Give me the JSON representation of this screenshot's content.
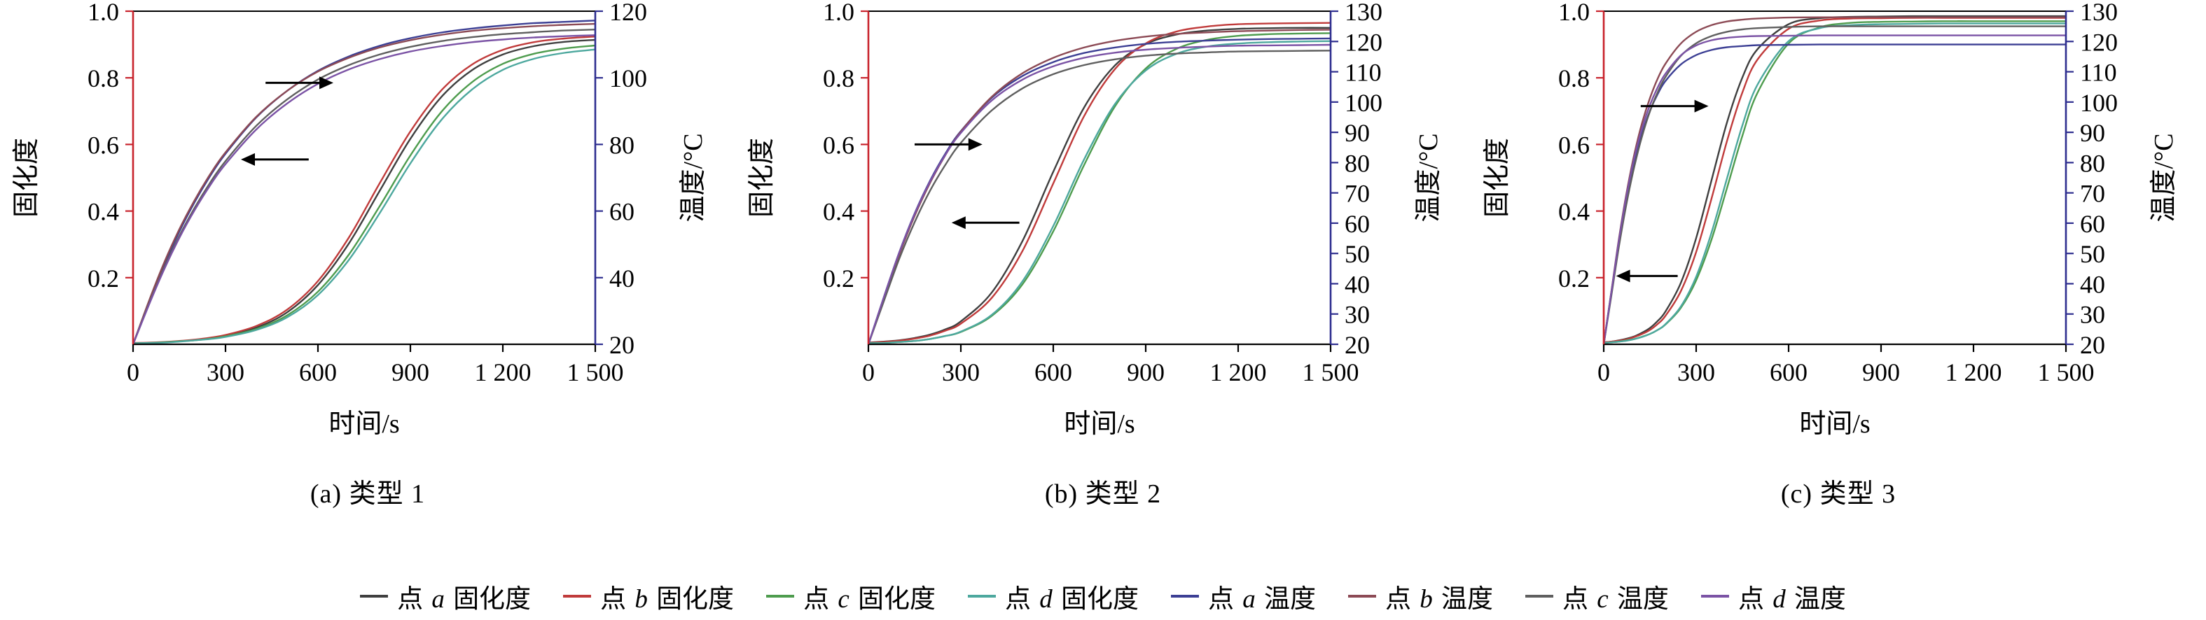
{
  "figure": {
    "background": "#ffffff"
  },
  "legend": {
    "items": [
      {
        "pre": "点",
        "letter": "a",
        "post": "固化度",
        "color": "#3f3f3f"
      },
      {
        "pre": "点",
        "letter": "b",
        "post": "固化度",
        "color": "#c03b3b"
      },
      {
        "pre": "点",
        "letter": "c",
        "post": "固化度",
        "color": "#4e9c4e"
      },
      {
        "pre": "点",
        "letter": "d",
        "post": "固化度",
        "color": "#4da89e"
      },
      {
        "pre": "点",
        "letter": "a",
        "post": "温度",
        "color": "#3c3f94"
      },
      {
        "pre": "点",
        "letter": "b",
        "post": "温度",
        "color": "#8c4a55"
      },
      {
        "pre": "点",
        "letter": "c",
        "post": "温度",
        "color": "#5f5f5f"
      },
      {
        "pre": "点",
        "letter": "d",
        "post": "温度",
        "color": "#7b53a5"
      }
    ]
  },
  "chart_data": [
    {
      "type": "line",
      "title": "(a) 类型 1",
      "xlabel": "时间/s",
      "ylabel_left": "固化度",
      "ylabel_right": "温度/°C",
      "xlim": [
        0,
        1500
      ],
      "xticks": [
        0,
        300,
        600,
        900,
        1200,
        1500
      ],
      "xtick_labels": [
        "0",
        "300",
        "600",
        "900",
        "1 200",
        "1 500"
      ],
      "ylim_left": [
        0,
        1
      ],
      "yticks_left": [
        0.2,
        0.4,
        0.6,
        0.8,
        1.0
      ],
      "ytick_labels_left": [
        "0.2",
        "0.4",
        "0.6",
        "0.8",
        "1.0"
      ],
      "ylim_right": [
        20,
        120
      ],
      "yticks_right": [
        20,
        40,
        60,
        80,
        100,
        120
      ],
      "axis_colors": {
        "left": "#c8232c",
        "right": "#2e2e8f",
        "top": "#000000",
        "bottom": "#000000"
      },
      "arrows": [
        {
          "dir": "right",
          "x": 430,
          "y": 0.785,
          "len": 220
        },
        {
          "dir": "left",
          "x": 350,
          "y": 0.555,
          "len": 220
        }
      ],
      "x": [
        0,
        50,
        100,
        150,
        200,
        250,
        300,
        400,
        500,
        600,
        700,
        800,
        900,
        1000,
        1100,
        1200,
        1300,
        1400,
        1500
      ],
      "series": [
        {
          "name": "点 a 固化度",
          "axis": "left",
          "color": "#3f3f3f",
          "y": [
            0.003,
            0.004,
            0.006,
            0.009,
            0.013,
            0.018,
            0.025,
            0.05,
            0.096,
            0.178,
            0.302,
            0.46,
            0.617,
            0.742,
            0.823,
            0.87,
            0.895,
            0.908,
            0.914
          ]
        },
        {
          "name": "点 b 固化度",
          "axis": "left",
          "color": "#c03b3b",
          "y": [
            0.004,
            0.005,
            0.007,
            0.01,
            0.014,
            0.02,
            0.028,
            0.055,
            0.104,
            0.19,
            0.32,
            0.483,
            0.639,
            0.762,
            0.84,
            0.884,
            0.907,
            0.918,
            0.924
          ]
        },
        {
          "name": "点 c 固化度",
          "axis": "left",
          "color": "#4e9c4e",
          "y": [
            0.003,
            0.004,
            0.006,
            0.009,
            0.012,
            0.017,
            0.024,
            0.046,
            0.087,
            0.158,
            0.269,
            0.414,
            0.567,
            0.697,
            0.787,
            0.842,
            0.872,
            0.888,
            0.897
          ]
        },
        {
          "name": "点 d 固化度",
          "axis": "left",
          "color": "#4da89e",
          "y": [
            0.003,
            0.004,
            0.005,
            0.008,
            0.012,
            0.016,
            0.022,
            0.043,
            0.081,
            0.148,
            0.253,
            0.393,
            0.543,
            0.673,
            0.765,
            0.824,
            0.857,
            0.875,
            0.885
          ]
        },
        {
          "name": "点 a 温度",
          "axis": "right",
          "color": "#3c3f94",
          "y": [
            20,
            32.3,
            43.7,
            53.8,
            62.7,
            70.5,
            77.2,
            88.1,
            96.1,
            102.1,
            106.4,
            109.6,
            111.9,
            113.6,
            114.8,
            115.7,
            116.4,
            116.8,
            117.2
          ]
        },
        {
          "name": "点 b 温度",
          "axis": "right",
          "color": "#8c4a55",
          "y": [
            20,
            32.6,
            44.3,
            54.5,
            63.3,
            71.0,
            77.6,
            88.3,
            96.1,
            101.9,
            106.0,
            109.1,
            111.3,
            112.9,
            114.1,
            114.9,
            115.5,
            115.9,
            116.2
          ]
        },
        {
          "name": "点 c 温度",
          "axis": "right",
          "color": "#5f5f5f",
          "y": [
            20,
            31.8,
            42.8,
            52.5,
            61.0,
            68.5,
            75.0,
            85.6,
            93.5,
            99.5,
            103.8,
            107.0,
            109.3,
            111.0,
            112.2,
            113.1,
            113.7,
            114.2,
            114.5
          ]
        },
        {
          "name": "点 d 温度",
          "axis": "right",
          "color": "#7b53a5",
          "y": [
            20,
            31.5,
            42.3,
            51.9,
            60.3,
            67.7,
            74.1,
            84.5,
            92.3,
            98.2,
            102.5,
            105.6,
            107.9,
            109.5,
            110.7,
            111.5,
            112.1,
            112.5,
            112.8
          ]
        }
      ]
    },
    {
      "type": "line",
      "title": "(b) 类型 2",
      "xlabel": "时间/s",
      "ylabel_left": "固化度",
      "ylabel_right": "温度/°C",
      "xlim": [
        0,
        1500
      ],
      "xticks": [
        0,
        300,
        600,
        900,
        1200,
        1500
      ],
      "xtick_labels": [
        "0",
        "300",
        "600",
        "900",
        "1 200",
        "1 500"
      ],
      "ylim_left": [
        0,
        1
      ],
      "yticks_left": [
        0.2,
        0.4,
        0.6,
        0.8,
        1.0
      ],
      "ytick_labels_left": [
        "0.2",
        "0.4",
        "0.6",
        "0.8",
        "1.0"
      ],
      "ylim_right": [
        20,
        130
      ],
      "yticks_right": [
        20,
        30,
        40,
        50,
        60,
        70,
        80,
        90,
        100,
        110,
        120,
        130
      ],
      "axis_colors": {
        "left": "#c8232c",
        "right": "#2e2e8f",
        "top": "#000000",
        "bottom": "#000000"
      },
      "arrows": [
        {
          "dir": "right",
          "x": 150,
          "y": 0.6,
          "len": 220
        },
        {
          "dir": "left",
          "x": 270,
          "y": 0.365,
          "len": 220
        }
      ],
      "x": [
        0,
        50,
        100,
        150,
        200,
        250,
        300,
        400,
        500,
        600,
        700,
        800,
        900,
        1000,
        1100,
        1200,
        1300,
        1400,
        1500
      ],
      "series": [
        {
          "name": "点 a 固化度",
          "axis": "left",
          "color": "#3f3f3f",
          "y": [
            0.005,
            0.008,
            0.012,
            0.019,
            0.029,
            0.045,
            0.069,
            0.155,
            0.31,
            0.518,
            0.711,
            0.837,
            0.901,
            0.93,
            0.942,
            0.947,
            0.949,
            0.95,
            0.95
          ]
        },
        {
          "name": "点 b 固化度",
          "axis": "left",
          "color": "#c03b3b",
          "y": [
            0.004,
            0.007,
            0.011,
            0.017,
            0.026,
            0.041,
            0.062,
            0.139,
            0.28,
            0.483,
            0.685,
            0.826,
            0.903,
            0.939,
            0.954,
            0.961,
            0.963,
            0.964,
            0.965
          ]
        },
        {
          "name": "点 c 固化度",
          "axis": "left",
          "color": "#4e9c4e",
          "y": [
            0.003,
            0.004,
            0.007,
            0.01,
            0.016,
            0.025,
            0.037,
            0.085,
            0.18,
            0.339,
            0.538,
            0.714,
            0.828,
            0.887,
            0.914,
            0.926,
            0.931,
            0.933,
            0.934
          ]
        },
        {
          "name": "点 d 固化度",
          "axis": "left",
          "color": "#4da89e",
          "y": [
            0.003,
            0.004,
            0.007,
            0.01,
            0.016,
            0.025,
            0.038,
            0.088,
            0.189,
            0.355,
            0.555,
            0.721,
            0.822,
            0.872,
            0.894,
            0.903,
            0.907,
            0.909,
            0.91
          ]
        },
        {
          "name": "点 a 温度",
          "axis": "right",
          "color": "#3c3f94",
          "y": [
            20,
            35.5,
            50.3,
            63.2,
            74.0,
            83.0,
            90.4,
            101.4,
            108.6,
            113.2,
            116.2,
            118.0,
            119.2,
            119.9,
            120.3,
            120.6,
            120.8,
            120.9,
            121.0
          ]
        },
        {
          "name": "点 b 温度",
          "axis": "right",
          "color": "#8c4a55",
          "y": [
            20,
            35.0,
            49.6,
            62.4,
            73.3,
            82.5,
            90.2,
            101.7,
            109.5,
            114.6,
            118.0,
            120.2,
            121.6,
            122.5,
            123.0,
            123.4,
            123.6,
            123.8,
            123.9
          ]
        },
        {
          "name": "点 c 温度",
          "axis": "right",
          "color": "#5f5f5f",
          "y": [
            20,
            34.2,
            48.2,
            60.3,
            70.7,
            79.3,
            86.5,
            97.2,
            104.5,
            109.2,
            112.2,
            114.1,
            115.3,
            116.0,
            116.4,
            116.7,
            116.8,
            116.9,
            117.0
          ]
        },
        {
          "name": "点 d 温度",
          "axis": "right",
          "color": "#7b53a5",
          "y": [
            20,
            35.5,
            50.3,
            63.0,
            73.7,
            82.6,
            89.8,
            100.5,
            107.4,
            111.8,
            114.6,
            116.3,
            117.3,
            117.9,
            118.3,
            118.6,
            118.7,
            118.8,
            118.9
          ]
        }
      ]
    },
    {
      "type": "line",
      "title": "(c) 类型 3",
      "xlabel": "时间/s",
      "ylabel_left": "固化度",
      "ylabel_right": "温度/°C",
      "xlim": [
        0,
        1500
      ],
      "xticks": [
        0,
        300,
        600,
        900,
        1200,
        1500
      ],
      "xtick_labels": [
        "0",
        "300",
        "600",
        "900",
        "1 200",
        "1 500"
      ],
      "ylim_left": [
        0,
        1
      ],
      "yticks_left": [
        0.2,
        0.4,
        0.6,
        0.8,
        1.0
      ],
      "ytick_labels_left": [
        "0.2",
        "0.4",
        "0.6",
        "0.8",
        "1.0"
      ],
      "ylim_right": [
        20,
        130
      ],
      "yticks_right": [
        20,
        30,
        40,
        50,
        60,
        70,
        80,
        90,
        100,
        110,
        120,
        130
      ],
      "axis_colors": {
        "left": "#c8232c",
        "right": "#2e2e8f",
        "top": "#000000",
        "bottom": "#000000"
      },
      "arrows": [
        {
          "dir": "right",
          "x": 120,
          "y": 0.715,
          "len": 220
        },
        {
          "dir": "left",
          "x": 40,
          "y": 0.205,
          "len": 200
        }
      ],
      "x": [
        0,
        25,
        50,
        75,
        100,
        125,
        150,
        175,
        200,
        250,
        300,
        350,
        400,
        450,
        500,
        600,
        700,
        800,
        900,
        1000,
        1100,
        1200,
        1300,
        1400,
        1500
      ],
      "series": [
        {
          "name": "点 a 固化度",
          "axis": "left",
          "color": "#3f3f3f",
          "y": [
            0.006,
            0.008,
            0.012,
            0.017,
            0.024,
            0.035,
            0.049,
            0.07,
            0.098,
            0.184,
            0.319,
            0.493,
            0.666,
            0.801,
            0.887,
            0.961,
            0.979,
            0.983,
            0.984,
            0.985,
            0.985,
            0.985,
            0.985,
            0.985,
            0.985
          ]
        },
        {
          "name": "点 b 固化度",
          "axis": "left",
          "color": "#c03b3b",
          "y": [
            0.005,
            0.008,
            0.011,
            0.015,
            0.022,
            0.031,
            0.043,
            0.061,
            0.085,
            0.159,
            0.277,
            0.438,
            0.61,
            0.756,
            0.856,
            0.947,
            0.972,
            0.978,
            0.979,
            0.98,
            0.98,
            0.98,
            0.98,
            0.98,
            0.98
          ]
        },
        {
          "name": "点 c 固化度",
          "axis": "left",
          "color": "#4e9c4e",
          "y": [
            0.004,
            0.006,
            0.008,
            0.012,
            0.016,
            0.023,
            0.031,
            0.043,
            0.059,
            0.109,
            0.192,
            0.315,
            0.469,
            0.626,
            0.757,
            0.903,
            0.951,
            0.965,
            0.968,
            0.969,
            0.97,
            0.97,
            0.97,
            0.97,
            0.97
          ]
        },
        {
          "name": "点 d 固化度",
          "axis": "left",
          "color": "#4da89e",
          "y": [
            0.004,
            0.006,
            0.008,
            0.011,
            0.016,
            0.022,
            0.031,
            0.043,
            0.06,
            0.113,
            0.203,
            0.336,
            0.498,
            0.657,
            0.781,
            0.91,
            0.949,
            0.958,
            0.961,
            0.962,
            0.963,
            0.963,
            0.963,
            0.963,
            0.963
          ]
        },
        {
          "name": "点 a 温度",
          "axis": "right",
          "color": "#3c3f94",
          "y": [
            20,
            37.3,
            54.3,
            68.8,
            80.5,
            89.8,
            97.1,
            102.6,
            106.9,
            112.4,
            115.5,
            117.2,
            118.1,
            118.5,
            118.8,
            118.9,
            119.0,
            119.0,
            119.0,
            119.0,
            119.0,
            119.0,
            119.0,
            119.0,
            119.0
          ]
        },
        {
          "name": "点 b 温度",
          "axis": "right",
          "color": "#8c4a55",
          "y": [
            20,
            37.6,
            55.3,
            70.5,
            83.1,
            93.3,
            101.3,
            107.7,
            112.6,
            119.3,
            123.2,
            125.4,
            126.6,
            127.2,
            127.6,
            127.9,
            128.0,
            128.0,
            128.0,
            128.0,
            128.0,
            128.0,
            128.0,
            128.0,
            128.0
          ]
        },
        {
          "name": "点 c 温度",
          "axis": "right",
          "color": "#5f5f5f",
          "y": [
            20,
            36.2,
            52.7,
            67.0,
            79.0,
            88.9,
            96.9,
            103.2,
            108.2,
            115.2,
            119.4,
            121.8,
            123.2,
            124.0,
            124.4,
            124.8,
            125.0,
            125.0,
            125.0,
            125.0,
            125.0,
            125.0,
            125.0,
            125.0,
            125.0
          ]
        },
        {
          "name": "点 d 温度",
          "axis": "right",
          "color": "#7b53a5",
          "y": [
            20,
            37.3,
            54.8,
            69.7,
            81.9,
            91.5,
            99.0,
            104.8,
            109.3,
            115.4,
            118.7,
            120.4,
            121.2,
            121.6,
            121.8,
            121.9,
            122.0,
            122.0,
            122.0,
            122.0,
            122.0,
            122.0,
            122.0,
            122.0,
            122.0
          ]
        }
      ]
    }
  ]
}
